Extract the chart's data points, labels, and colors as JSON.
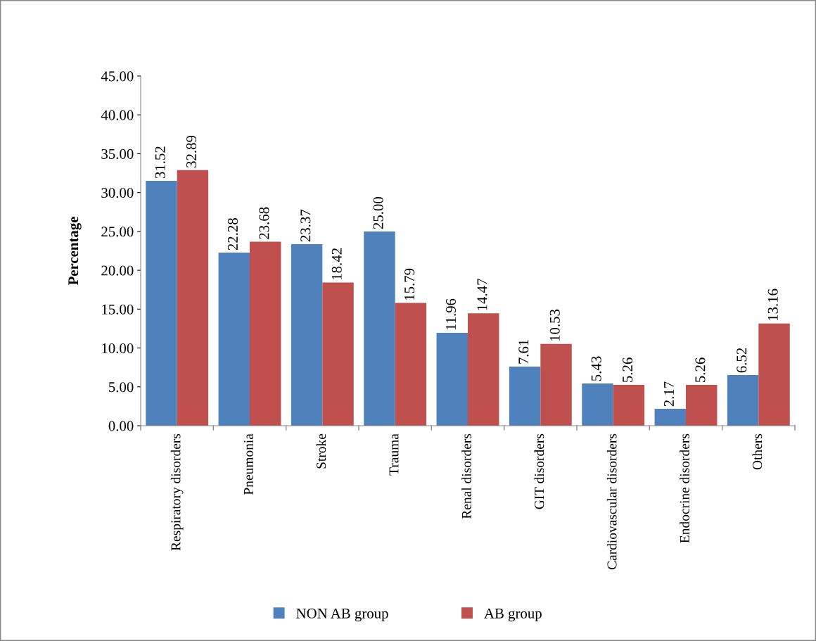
{
  "chart_data": {
    "type": "bar",
    "ylabel": "Percentage",
    "categories": [
      "Respiratory disorders",
      "Pneumonia",
      "Stroke",
      "Trauma",
      "Renal disorders",
      "GIT disorders",
      "Cardiovascular disorders",
      "Endocrine disorders",
      "Others"
    ],
    "series": [
      {
        "name": "NON AB group",
        "color": "#4f81bd",
        "values": [
          31.52,
          22.28,
          23.37,
          25.0,
          11.96,
          7.61,
          5.43,
          2.17,
          6.52
        ],
        "value_labels": [
          "31.52",
          "22.28",
          "23.37",
          "25.00",
          "11.96",
          "7.61",
          "5.43",
          "2.17",
          "6.52"
        ]
      },
      {
        "name": "AB group",
        "color": "#c0504d",
        "values": [
          32.89,
          23.68,
          18.42,
          15.79,
          14.47,
          10.53,
          5.26,
          5.26,
          13.16
        ],
        "value_labels": [
          "32.89",
          "23.68",
          "18.42",
          "15.79",
          "14.47",
          "10.53",
          "5.26",
          "5.26",
          "13.16"
        ]
      }
    ],
    "ylim": [
      0,
      45
    ],
    "yticks": [
      {
        "value": 0,
        "label": "0.00"
      },
      {
        "value": 5,
        "label": "5.00"
      },
      {
        "value": 10,
        "label": "10.00"
      },
      {
        "value": 15,
        "label": "15.00"
      },
      {
        "value": 20,
        "label": "20.00"
      },
      {
        "value": 25,
        "label": "25.00"
      },
      {
        "value": 30,
        "label": "30.00"
      },
      {
        "value": 35,
        "label": "35.00"
      },
      {
        "value": 40,
        "label": "40.00"
      },
      {
        "value": 45,
        "label": "45.00"
      }
    ],
    "grid": false,
    "legend": "bottom"
  }
}
